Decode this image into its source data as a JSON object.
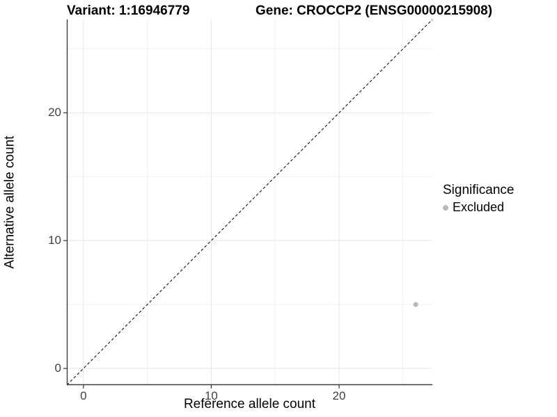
{
  "header": {
    "variant": "Variant: 1:16946779",
    "gene": "Gene: CROCCP2 (ENSG00000215908)"
  },
  "legend": {
    "title": "Significance",
    "items": [
      {
        "label": "Excluded",
        "color": "#b9b9b9"
      }
    ]
  },
  "colors": {
    "grid_major": "#e5e5e5",
    "grid_minor": "#f1f1f1",
    "axis_line": "#3c3c3c",
    "tick_mark": "#333333",
    "tick_text": "#404040",
    "reference_line": "#111111",
    "point": "#b9b9b9"
  },
  "chart_data": {
    "type": "scatter",
    "title": "Variant: 1:16946779 | Gene: CROCCP2 (ENSG00000215908)",
    "xlabel": "Reference allele count",
    "ylabel": "Alternative allele count",
    "xlim": [
      -1.3,
      27.3
    ],
    "ylim": [
      -1.3,
      27.3
    ],
    "x_ticks": [
      0,
      10,
      20
    ],
    "x_minor_ticks": [
      5,
      15,
      25
    ],
    "y_ticks": [
      0,
      10,
      20
    ],
    "y_minor_ticks": [
      5,
      15,
      25
    ],
    "grid": "major+minor",
    "legend_position": "right",
    "series": [
      {
        "name": "Excluded",
        "color": "#b9b9b9",
        "points": [
          [
            26,
            5
          ]
        ]
      }
    ],
    "reference_line": {
      "style": "dashed",
      "slope": 1,
      "intercept": 0
    }
  }
}
